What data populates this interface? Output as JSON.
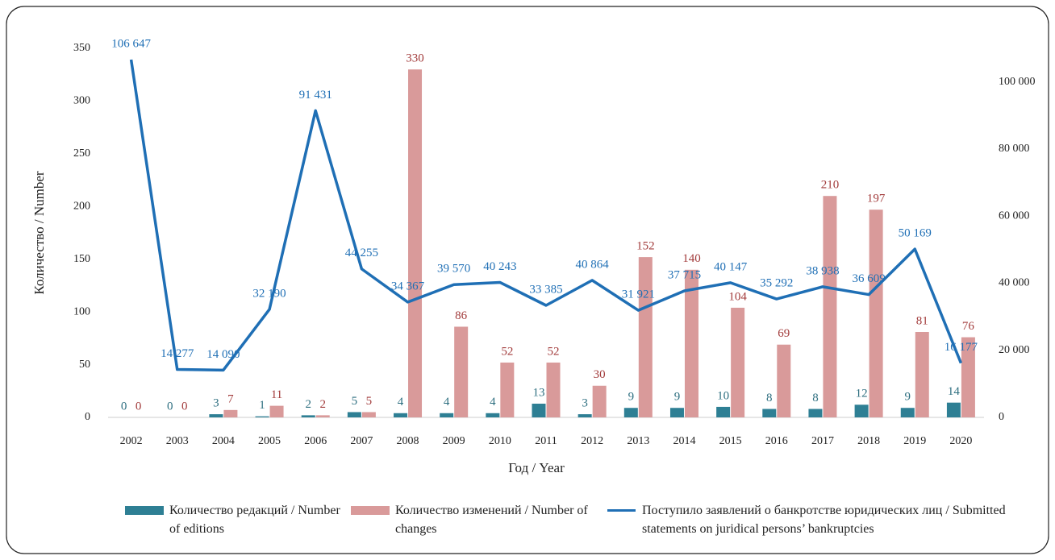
{
  "chart_data": {
    "type": "bar",
    "x_label": "Год / Year",
    "y_label": "Количество / Number",
    "categories": [
      "2002",
      "2003",
      "2004",
      "2005",
      "2006",
      "2007",
      "2008",
      "2009",
      "2010",
      "2011",
      "2012",
      "2013",
      "2014",
      "2015",
      "2016",
      "2017",
      "2018",
      "2019",
      "2020"
    ],
    "series": [
      {
        "name": "Количество редакций / Number of editions",
        "color": "#2e7f94",
        "label_color": "#2e6f80",
        "values": [
          0,
          0,
          3,
          1,
          2,
          5,
          4,
          4,
          4,
          13,
          3,
          9,
          9,
          10,
          8,
          8,
          12,
          9,
          14
        ]
      },
      {
        "name": "Количество изменений / Number of changes",
        "color": "#d99a9a",
        "label_color": "#a23b3b",
        "values": [
          0,
          0,
          7,
          11,
          2,
          5,
          330,
          86,
          52,
          52,
          30,
          152,
          140,
          104,
          69,
          210,
          197,
          81,
          76
        ]
      },
      {
        "name": "Поступило заявлений о банкротстве юридических лиц / Submitted statements on juridical persons’ bankruptcies",
        "color": "#1f6fb5",
        "label_color": "#1f6fb5",
        "type": "line",
        "axis": "y2",
        "values": [
          106647,
          14277,
          14090,
          32190,
          91431,
          44255,
          34367,
          39570,
          40243,
          33385,
          40864,
          31921,
          37715,
          40147,
          35292,
          38938,
          36609,
          50169,
          16177
        ],
        "value_labels": [
          "106 647",
          "14 277",
          "14 090",
          "32 190",
          "91 431",
          "44 255",
          "34 367",
          "39 570",
          "40 243",
          "33 385",
          "40 864",
          "31 921",
          "37 715",
          "40 147",
          "35 292",
          "38 938",
          "36 609",
          "50 169",
          "16 177"
        ]
      }
    ],
    "ylim": [
      0,
      350
    ],
    "yticks": [
      0,
      50,
      100,
      150,
      200,
      250,
      300,
      350
    ],
    "y2lim": [
      0,
      110000
    ],
    "y2ticks": [
      0,
      {
        "value": 20000,
        "label": "20 000"
      },
      {
        "value": 40000,
        "label": "40 000"
      },
      {
        "value": 60000,
        "label": "60 000"
      },
      {
        "value": 80000,
        "label": "80 000"
      },
      {
        "value": 100000,
        "label": "100 000"
      }
    ],
    "grid": false,
    "legend": "bottom"
  }
}
